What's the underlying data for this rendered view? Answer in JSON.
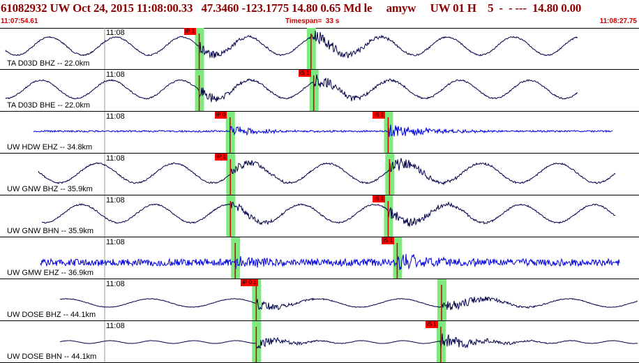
{
  "header": {
    "event_summary": "61082932 UW Oct 24, 2015 11:08:00.33   47.3460 -123.1775 14.80 0.65 Md le     amyw     UW 01 H    5  -  - ---  14.80 0.00",
    "start_time": "11:07:54.61",
    "timespan": "Timespan=  33 s",
    "end_time": "11:08:27.75"
  },
  "colors": {
    "header_text": "#8b0000",
    "subline_text": "#cc0000",
    "pick_flag": "#ff0000",
    "phase_window": "#7fe87f",
    "broadband_trace": "#00004a",
    "shortperiod_trace": "#0000dd",
    "pick_line": "#cc0000"
  },
  "tick_time": "11:08",
  "channels": [
    {
      "label": "TA D03D BHZ -- 22.0km",
      "color": "broadband",
      "picks": [
        {
          "label": "iP 1",
          "t": 10.33,
          "window": true
        },
        {
          "label": "",
          "t": 16.13,
          "window": true
        }
      ]
    },
    {
      "label": "TA D03D BHE -- 22.0km",
      "color": "broadband",
      "picks": [
        {
          "label": "",
          "t": 10.33,
          "window": true
        },
        {
          "label": "iS 1",
          "t": 16.27,
          "window": true
        }
      ]
    },
    {
      "label": "UW HDW EHZ -- 34.8km",
      "color": "shortperiod",
      "picks": [
        {
          "label": "iP 0",
          "t": 11.93,
          "window": true
        },
        {
          "label": "iS 1",
          "t": 20.13,
          "window": true
        }
      ]
    },
    {
      "label": "UW GNW BHZ -- 35.9km",
      "color": "broadband",
      "picks": [
        {
          "label": "iP 1",
          "t": 11.95,
          "window": true
        },
        {
          "label": "",
          "t": 20.2,
          "window": true
        }
      ]
    },
    {
      "label": "UW GNW BHN -- 35.9km",
      "color": "broadband",
      "picks": [
        {
          "label": "",
          "t": 11.95,
          "window": true
        },
        {
          "label": "iS 1",
          "t": 20.13,
          "window": true
        }
      ]
    },
    {
      "label": "UW GMW EHZ -- 36.9km",
      "color": "shortperiod",
      "picks": [
        {
          "label": "",
          "t": 12.2,
          "window": true
        },
        {
          "label": "iS 1",
          "t": 20.6,
          "window": true
        }
      ]
    },
    {
      "label": "UW DOSE BHZ -- 44.1km",
      "color": "broadband",
      "picks": [
        {
          "label": "iP 0 1",
          "t": 13.29,
          "window": true
        },
        {
          "label": "",
          "t": 22.9,
          "window": true
        }
      ]
    },
    {
      "label": "UW DOSE BHN -- 44.1km",
      "color": "broadband",
      "picks": [
        {
          "label": "",
          "t": 13.29,
          "window": true
        },
        {
          "label": "iS 1",
          "t": 22.86,
          "window": true
        }
      ]
    }
  ]
}
